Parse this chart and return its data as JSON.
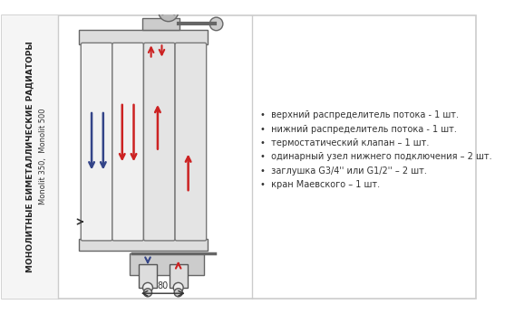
{
  "bg_color": "#ffffff",
  "border_color": "#cccccc",
  "radiator_color": "#e8e8e8",
  "dark_color": "#555555",
  "red_color": "#cc2222",
  "blue_color": "#334488",
  "text_color": "#333333",
  "left_panel_text1": "МОНОЛИТНЫЕ БИМЕТАЛЛИЧЕСКИЕ РАДИАТОРЫ",
  "left_panel_text2": "Monolit 350,  Monolit 500",
  "bullet_items": [
    "верхний распределитель потока - 1 шт.",
    "нижний распределитель потока - 1 шт.",
    "термостатический клапан – 1 шт.",
    "одинарный узел нижнего подключения – 2 шт.",
    "заглушка G3/4'' или G1/2'' – 2 шт.",
    "кран Маевского – 1 шт."
  ],
  "dim_label": "80"
}
